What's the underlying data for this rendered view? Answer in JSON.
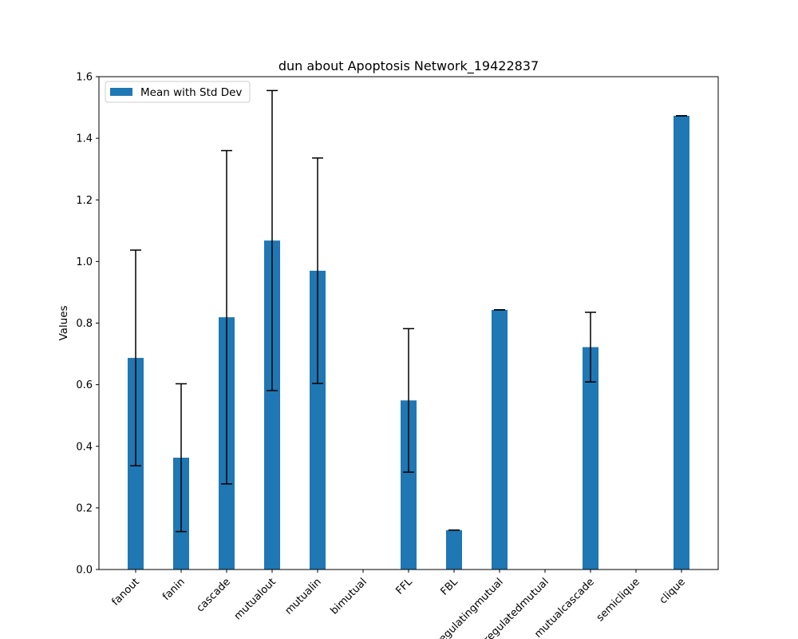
{
  "chart_data": {
    "type": "bar",
    "title": "dun about Apoptosis Network_19422837",
    "xlabel": "",
    "ylabel": "Values",
    "ylim": [
      0,
      1.6
    ],
    "yticks": [
      0.0,
      0.2,
      0.4,
      0.6,
      0.8,
      1.0,
      1.2,
      1.4,
      1.6
    ],
    "ytick_labels": [
      "0.0",
      "0.2",
      "0.4",
      "0.6",
      "0.8",
      "1.0",
      "1.2",
      "1.4",
      "1.6"
    ],
    "categories": [
      "fanout",
      "fanin",
      "cascade",
      "mutualout",
      "mutualin",
      "bimutual",
      "FFL",
      "FBL",
      "regulatingmutual",
      "regulatedmutual",
      "mutualcascade",
      "semiclique",
      "clique"
    ],
    "series": [
      {
        "name": "Mean with Std Dev",
        "values": [
          0.687,
          0.363,
          0.819,
          1.068,
          0.97,
          0.0,
          0.549,
          0.128,
          0.843,
          0.0,
          0.722,
          0.0,
          1.473
        ],
        "errors": [
          0.35,
          0.24,
          0.541,
          0.487,
          0.366,
          0.0,
          0.233,
          0.0,
          0.0,
          0.0,
          0.113,
          0.0,
          0.0
        ],
        "color": "#1f77b4"
      }
    ],
    "grid": false,
    "legend_position": "top-left"
  }
}
